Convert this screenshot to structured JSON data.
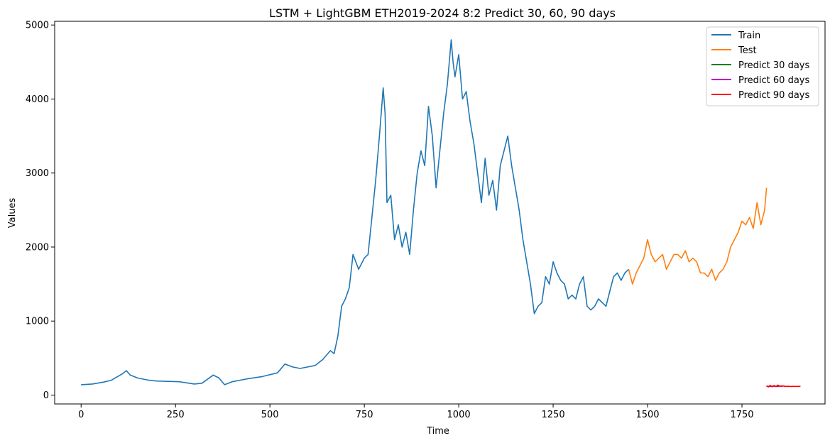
{
  "chart_data": {
    "type": "line",
    "title": "LSTM + LightGBM ETH2019-2024 8:2 Predict 30, 60, 90 days",
    "xlabel": "Time",
    "ylabel": "Values",
    "xlim": [
      -70,
      1970
    ],
    "ylim": [
      -120,
      5050
    ],
    "xticks": [
      0,
      250,
      500,
      750,
      1000,
      1250,
      1500,
      1750
    ],
    "yticks": [
      0,
      1000,
      2000,
      3000,
      4000,
      5000
    ],
    "grid": false,
    "legend_position": "top-right",
    "series": [
      {
        "name": "Train",
        "color": "#1f77b4",
        "x": [
          0,
          30,
          60,
          80,
          100,
          110,
          120,
          130,
          150,
          180,
          200,
          230,
          260,
          300,
          320,
          350,
          365,
          380,
          400,
          440,
          480,
          520,
          540,
          560,
          580,
          600,
          620,
          640,
          660,
          670,
          680,
          690,
          700,
          710,
          720,
          735,
          750,
          760,
          770,
          780,
          790,
          800,
          805,
          810,
          820,
          830,
          840,
          850,
          860,
          870,
          880,
          890,
          900,
          910,
          920,
          930,
          940,
          950,
          960,
          970,
          980,
          985,
          990,
          1000,
          1010,
          1020,
          1030,
          1040,
          1050,
          1060,
          1070,
          1080,
          1090,
          1100,
          1110,
          1120,
          1130,
          1140,
          1150,
          1160,
          1170,
          1180,
          1190,
          1200,
          1210,
          1220,
          1230,
          1240,
          1250,
          1260,
          1270,
          1280,
          1290,
          1300,
          1310,
          1320,
          1330,
          1340,
          1350,
          1360,
          1370,
          1380,
          1390,
          1400,
          1410,
          1420,
          1430,
          1440,
          1450
        ],
        "y": [
          140,
          150,
          175,
          200,
          260,
          290,
          330,
          270,
          230,
          200,
          190,
          185,
          180,
          150,
          160,
          270,
          230,
          140,
          180,
          220,
          250,
          300,
          420,
          380,
          360,
          380,
          400,
          480,
          600,
          560,
          800,
          1200,
          1300,
          1450,
          1900,
          1700,
          1850,
          1900,
          2400,
          2900,
          3500,
          4150,
          3800,
          2600,
          2700,
          2100,
          2300,
          2000,
          2200,
          1900,
          2500,
          3000,
          3300,
          3100,
          3900,
          3500,
          2800,
          3300,
          3800,
          4200,
          4800,
          4500,
          4300,
          4600,
          4000,
          4100,
          3700,
          3400,
          3000,
          2600,
          3200,
          2700,
          2900,
          2500,
          3100,
          3300,
          3500,
          3100,
          2800,
          2500,
          2100,
          1800,
          1500,
          1100,
          1200,
          1250,
          1600,
          1500,
          1800,
          1650,
          1550,
          1500,
          1300,
          1350,
          1300,
          1500,
          1600,
          1200,
          1150,
          1200,
          1300,
          1250,
          1200,
          1400,
          1600,
          1650,
          1550,
          1650,
          1700
        ]
      },
      {
        "name": "Test",
        "color": "#ff7f0e",
        "x": [
          1450,
          1460,
          1470,
          1480,
          1490,
          1500,
          1510,
          1520,
          1530,
          1540,
          1550,
          1560,
          1570,
          1580,
          1590,
          1600,
          1610,
          1620,
          1630,
          1640,
          1650,
          1660,
          1670,
          1680,
          1690,
          1700,
          1710,
          1720,
          1730,
          1740,
          1750,
          1760,
          1770,
          1780,
          1790,
          1800,
          1810,
          1815
        ],
        "y": [
          1700,
          1500,
          1650,
          1750,
          1850,
          2100,
          1900,
          1800,
          1850,
          1900,
          1700,
          1800,
          1900,
          1900,
          1850,
          1950,
          1800,
          1850,
          1800,
          1650,
          1650,
          1600,
          1700,
          1550,
          1650,
          1700,
          1800,
          2000,
          2100,
          2200,
          2350,
          2300,
          2400,
          2250,
          2600,
          2300,
          2500,
          2800
        ]
      },
      {
        "name": "Predict 30 days",
        "color": "#008000",
        "x": [
          1815,
          1820,
          1825,
          1830,
          1835,
          1840,
          1845
        ],
        "y": [
          120,
          118,
          122,
          115,
          120,
          117,
          119
        ]
      },
      {
        "name": "Predict 60 days",
        "color": "#bf00bf",
        "x": [
          1815,
          1825,
          1835,
          1845,
          1855,
          1865,
          1875
        ],
        "y": [
          120,
          116,
          123,
          116,
          125,
          118,
          117
        ]
      },
      {
        "name": "Predict 90 days",
        "color": "#ff0000",
        "x": [
          1815,
          1820,
          1825,
          1830,
          1835,
          1840,
          1845,
          1850,
          1855,
          1860,
          1865,
          1870,
          1875,
          1880,
          1885,
          1890,
          1895,
          1905
        ],
        "y": [
          125,
          110,
          130,
          112,
          128,
          115,
          135,
          120,
          118,
          125,
          115,
          120,
          118,
          116,
          118,
          117,
          117,
          118
        ]
      }
    ]
  }
}
